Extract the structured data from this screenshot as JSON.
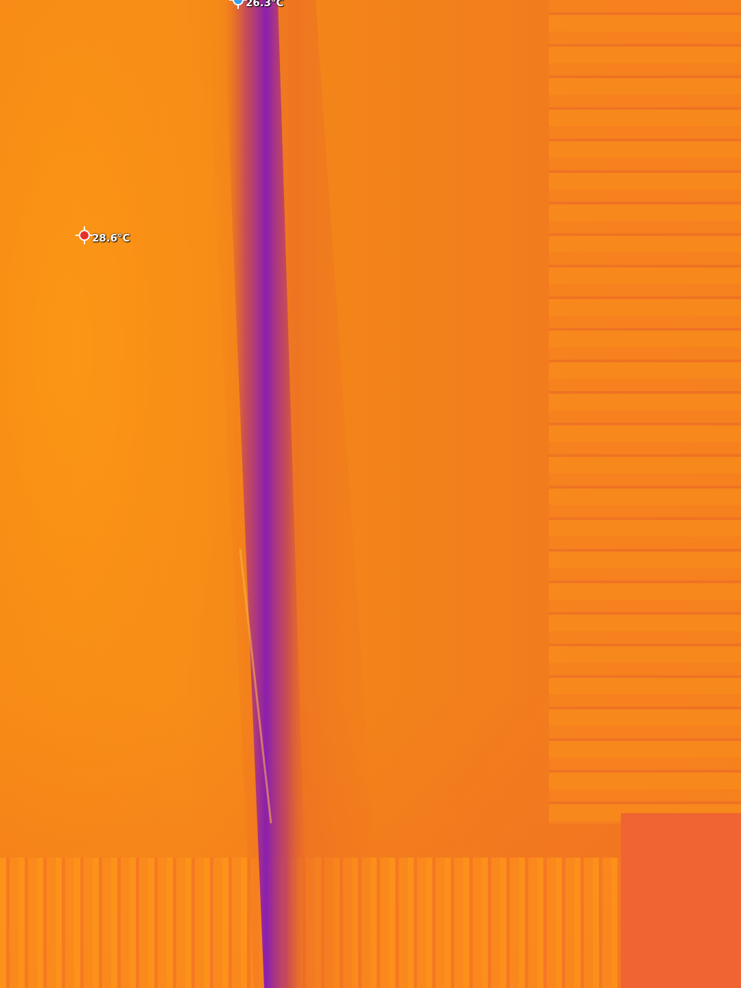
{
  "image": {
    "type": "thermal",
    "palette": "iron",
    "colors": {
      "warm": "#f68a16",
      "cold": "#8a1fb0",
      "hot_spot_marker": "#e8302a",
      "cold_spot_marker": "#3aa0e8"
    }
  },
  "markers": {
    "max": {
      "icon": "hot-spot-reticle-icon",
      "temperature": "28.6°C"
    },
    "min": {
      "icon": "cold-spot-reticle-icon",
      "temperature": "26.3°C"
    }
  }
}
